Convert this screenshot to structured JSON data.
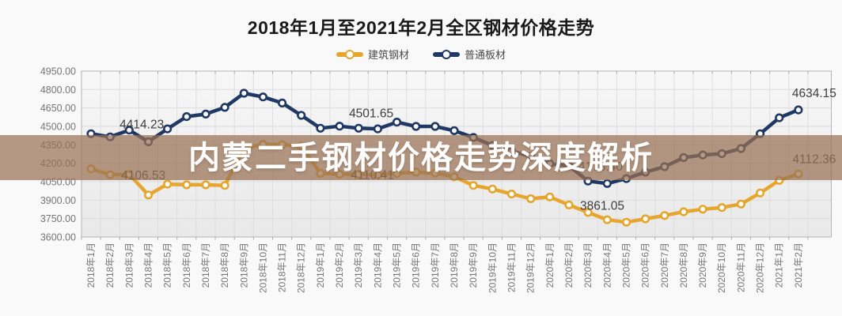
{
  "title": "2018年1月至2021年2月全区钢材价格走势",
  "banner": {
    "text": "内蒙二手钢材价格走势深度解析"
  },
  "legend": {
    "items": [
      {
        "label": "建筑钢材",
        "color": "#E6A62D"
      },
      {
        "label": "普通板材",
        "color": "#1F3864"
      }
    ]
  },
  "watermark_color": "rgba(152,113,85,0.72)",
  "chart_data": {
    "type": "line",
    "title": "2018年1月至2021年2月全区钢材价格走势",
    "legend_position": "top",
    "grid": true,
    "ylim": [
      3600,
      4950
    ],
    "y_ticks": [
      "3600.00",
      "3750.00",
      "3900.00",
      "4050.00",
      "4200.00",
      "4350.00",
      "4500.00",
      "4650.00",
      "4800.00",
      "4950.00"
    ],
    "categories": [
      "2018年1月",
      "2018年2月",
      "2018年3月",
      "2018年4月",
      "2018年5月",
      "2018年6月",
      "2018年7月",
      "2018年8月",
      "2018年9月",
      "2018年10月",
      "2018年11月",
      "2018年12月",
      "2019年1月",
      "2019年2月",
      "2019年3月",
      "2019年4月",
      "2019年5月",
      "2019年6月",
      "2019年7月",
      "2019年8月",
      "2019年9月",
      "2019年10月",
      "2019年11月",
      "2019年12月",
      "2020年1月",
      "2020年2月",
      "2020年3月",
      "2020年4月",
      "2020年5月",
      "2020年6月",
      "2020年7月",
      "2020年8月",
      "2020年9月",
      "2020年10月",
      "2020年11月",
      "2020年12月",
      "2021年1月",
      "2021年2月"
    ],
    "series": [
      {
        "name": "建筑钢材",
        "color": "#E6A62D",
        "values": [
          4155,
          4106.53,
          4110,
          3942,
          4030,
          4025,
          4025,
          4020,
          4320,
          4355,
          4350,
          4340,
          4118,
          4110.41,
          4110,
          4105,
          4117,
          4128,
          4120,
          4090,
          4020,
          3990,
          3950,
          3912,
          3926,
          3861.05,
          3800,
          3740,
          3720,
          3748,
          3775,
          3805,
          3826,
          3840,
          3868,
          3958,
          4060,
          4112.36
        ],
        "point_labels": {
          "1": "4106.53",
          "13": "4110.41",
          "25": "3861.05",
          "37": "4112.36"
        }
      },
      {
        "name": "普通板材",
        "color": "#1F3864",
        "values": [
          4440,
          4414.23,
          4470,
          4375,
          4480,
          4580,
          4600,
          4655,
          4770,
          4740,
          4690,
          4590,
          4485,
          4501.65,
          4485,
          4480,
          4535,
          4500,
          4500,
          4465,
          4410,
          4345,
          4300,
          4255,
          4195,
          4178.4,
          4055,
          4035,
          4075,
          4128,
          4172,
          4246,
          4267,
          4278,
          4320,
          4440,
          4570,
          4634.15
        ],
        "point_labels": {
          "1": "4414.23",
          "13": "4501.65",
          "25": "4178.40",
          "37": "4634.15"
        }
      }
    ]
  }
}
